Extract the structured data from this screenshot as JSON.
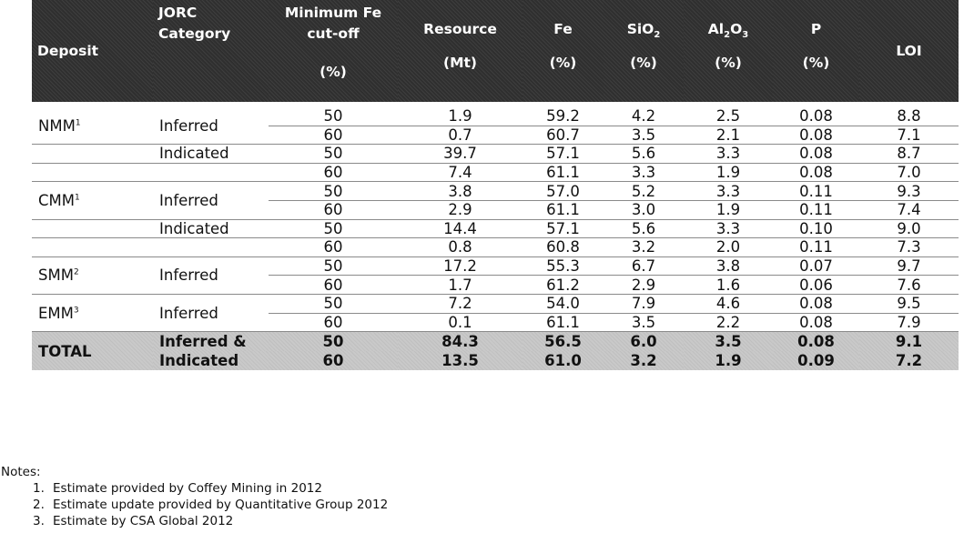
{
  "header": {
    "deposit": "Deposit",
    "jorc_line1": "JORC",
    "jorc_line2": "Category",
    "cutoff_line1": "Minimum Fe",
    "cutoff_line2": "cut-off",
    "cutoff_unit": "(%)",
    "resource": "Resource",
    "resource_unit": "(Mt)",
    "fe": "Fe",
    "fe_unit": "(%)",
    "sio2_main": "SiO",
    "sio2_sub": "2",
    "sio2_unit": "(%)",
    "al2o3_a": "Al",
    "al2o3_s1": "2",
    "al2o3_b": "O",
    "al2o3_s2": "3",
    "al2o3_unit": "(%)",
    "p": "P",
    "p_unit": "(%)",
    "loi": "LOI"
  },
  "rows": [
    {
      "deposit": "NMM",
      "sup": "1",
      "category": "Inferred",
      "cutoff": "50",
      "resource": "1.9",
      "fe": "59.2",
      "sio2": "4.2",
      "al2o3": "2.5",
      "p": "0.08",
      "loi": "8.8"
    },
    {
      "deposit": "",
      "sup": "",
      "category": "",
      "cutoff": "60",
      "resource": "0.7",
      "fe": "60.7",
      "sio2": "3.5",
      "al2o3": "2.1",
      "p": "0.08",
      "loi": "7.1"
    },
    {
      "deposit": "",
      "sup": "",
      "category": "Indicated",
      "cutoff": "50",
      "resource": "39.7",
      "fe": "57.1",
      "sio2": "5.6",
      "al2o3": "3.3",
      "p": "0.08",
      "loi": "8.7"
    },
    {
      "deposit": "",
      "sup": "",
      "category": "",
      "cutoff": "60",
      "resource": "7.4",
      "fe": "61.1",
      "sio2": "3.3",
      "al2o3": "1.9",
      "p": "0.08",
      "loi": "7.0"
    },
    {
      "deposit": "CMM",
      "sup": "1",
      "category": "Inferred",
      "cutoff": "50",
      "resource": "3.8",
      "fe": "57.0",
      "sio2": "5.2",
      "al2o3": "3.3",
      "p": "0.11",
      "loi": "9.3"
    },
    {
      "deposit": "",
      "sup": "",
      "category": "",
      "cutoff": "60",
      "resource": "2.9",
      "fe": "61.1",
      "sio2": "3.0",
      "al2o3": "1.9",
      "p": "0.11",
      "loi": "7.4"
    },
    {
      "deposit": "",
      "sup": "",
      "category": "Indicated",
      "cutoff": "50",
      "resource": "14.4",
      "fe": "57.1",
      "sio2": "5.6",
      "al2o3": "3.3",
      "p": "0.10",
      "loi": "9.0"
    },
    {
      "deposit": "",
      "sup": "",
      "category": "",
      "cutoff": "60",
      "resource": "0.8",
      "fe": "60.8",
      "sio2": "3.2",
      "al2o3": "2.0",
      "p": "0.11",
      "loi": "7.3"
    },
    {
      "deposit": "SMM",
      "sup": "2",
      "category": "Inferred",
      "cutoff": "50",
      "resource": "17.2",
      "fe": "55.3",
      "sio2": "6.7",
      "al2o3": "3.8",
      "p": "0.07",
      "loi": "9.7"
    },
    {
      "deposit": "",
      "sup": "",
      "category": "",
      "cutoff": "60",
      "resource": "1.7",
      "fe": "61.2",
      "sio2": "2.9",
      "al2o3": "1.6",
      "p": "0.06",
      "loi": "7.6"
    },
    {
      "deposit": "EMM",
      "sup": "3",
      "category": "Inferred",
      "cutoff": "50",
      "resource": "7.2",
      "fe": "54.0",
      "sio2": "7.9",
      "al2o3": "4.6",
      "p": "0.08",
      "loi": "9.5"
    },
    {
      "deposit": "",
      "sup": "",
      "category": "",
      "cutoff": "60",
      "resource": "0.1",
      "fe": "61.1",
      "sio2": "3.5",
      "al2o3": "2.2",
      "p": "0.08",
      "loi": "7.9"
    }
  ],
  "total": {
    "label": "TOTAL",
    "category_line1": "Inferred &",
    "category_line2": "Indicated",
    "rows": [
      {
        "cutoff": "50",
        "resource": "84.3",
        "fe": "56.5",
        "sio2": "6.0",
        "al2o3": "3.5",
        "p": "0.08",
        "loi": "9.1"
      },
      {
        "cutoff": "60",
        "resource": "13.5",
        "fe": "61.0",
        "sio2": "3.2",
        "al2o3": "1.9",
        "p": "0.09",
        "loi": "7.2"
      }
    ]
  },
  "notes": {
    "heading": "Notes:",
    "items": [
      {
        "num": "1.",
        "text": "Estimate provided by Coffey Mining in 2012"
      },
      {
        "num": "2.",
        "text": "Estimate update provided by Quantitative Group 2012"
      },
      {
        "num": "3.",
        "text": "Estimate by CSA Global 2012"
      }
    ]
  },
  "colors": {
    "header_bg": "#2f2f2f",
    "total_bg": "#c9c9c9",
    "rule": "#8a8a8a"
  }
}
